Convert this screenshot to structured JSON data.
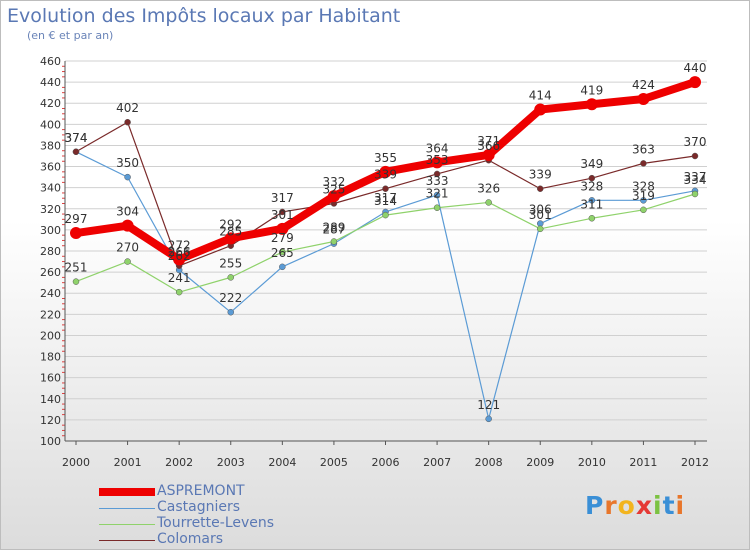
{
  "title": "Evolution des Impôts locaux par Habitant",
  "subtitle": "(en € et par an)",
  "logo": {
    "text": "Proxiti",
    "letters": [
      "P",
      "r",
      "o",
      "x",
      "i",
      "t",
      "i"
    ],
    "colors": [
      "#3a8fd6",
      "#e8762b",
      "#f2b41e",
      "#e53935",
      "#7cc242",
      "#3a8fd6",
      "#e8762b"
    ]
  },
  "chart_data": {
    "type": "line",
    "title": "Evolution des Impôts locaux par Habitant",
    "xlabel": "",
    "ylabel": "(en € et par an)",
    "categories": [
      "2000",
      "2001",
      "2002",
      "2003",
      "2004",
      "2005",
      "2006",
      "2007",
      "2008",
      "2009",
      "2010",
      "2011",
      "2012"
    ],
    "ylim": [
      100,
      460
    ],
    "yticks": [
      100,
      120,
      140,
      160,
      180,
      200,
      220,
      240,
      260,
      280,
      300,
      320,
      340,
      360,
      380,
      400,
      420,
      440,
      460
    ],
    "grid": true,
    "legend_position": "bottom-left",
    "series": [
      {
        "name": "ASPREMONT",
        "color": "#ee0000",
        "values": [
          297,
          304,
          272,
          292,
          301,
          332,
          355,
          364,
          371,
          414,
          419,
          424,
          440
        ]
      },
      {
        "name": "Castagniers",
        "color": "#5b9bd5",
        "values": [
          374,
          350,
          262,
          222,
          265,
          287,
          317,
          333,
          121,
          306,
          328,
          328,
          337
        ]
      },
      {
        "name": "Tourrette-Levens",
        "color": "#8fd26b",
        "values": [
          251,
          270,
          241,
          255,
          279,
          289,
          314,
          321,
          326,
          301,
          311,
          319,
          334
        ]
      },
      {
        "name": "Colomars",
        "color": "#7a2a2a",
        "values": [
          374,
          402,
          266,
          285,
          317,
          325,
          339,
          353,
          366,
          339,
          349,
          363,
          370
        ]
      }
    ]
  }
}
